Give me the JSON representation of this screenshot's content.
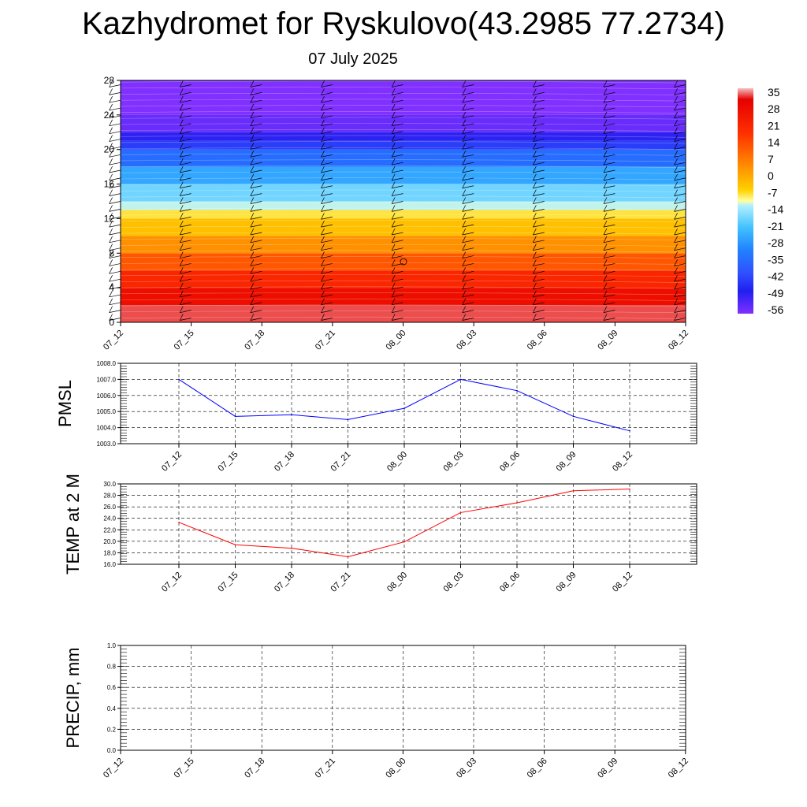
{
  "header": {
    "title": "Kazhydromet for Ryskulovo(43.2985 77.2734)",
    "date": "07 July 2025"
  },
  "chart_data": [
    {
      "id": "cross_section",
      "type": "heatmap",
      "x_ticks": [
        "07_12",
        "07_15",
        "07_18",
        "07_21",
        "08_00",
        "08_03",
        "08_06",
        "08_09",
        "08_12"
      ],
      "y_ticks": [
        "0",
        "4",
        "8",
        "12",
        "16",
        "20",
        "24",
        "28"
      ],
      "ylim": [
        0,
        28
      ],
      "y_band_levels": [
        0,
        2,
        4,
        6,
        8,
        10,
        12,
        13,
        14,
        16,
        18,
        20,
        21,
        22,
        24,
        28
      ],
      "y_band_values": [
        32,
        27,
        22,
        16,
        10,
        4,
        -2,
        -12,
        -18,
        -26,
        -36,
        -46,
        -53,
        -58,
        -60
      ],
      "colorbar_labels": [
        "35",
        "28",
        "21",
        "14",
        "7",
        "0",
        "-7",
        "-14",
        "-21",
        "-28",
        "-35",
        "-42",
        "-49",
        "-56"
      ],
      "colors": [
        "#f4b8b8",
        "#e80000",
        "#ff4000",
        "#ff8000",
        "#ffb000",
        "#ffe000",
        "#ffffa0",
        "#a0e8ff",
        "#40c0ff",
        "#1890ff",
        "#3060ff",
        "#2020ff",
        "#4030ff",
        "#8030ff"
      ]
    },
    {
      "id": "pmsl",
      "type": "line",
      "ylabel": "PMSL",
      "x": [
        "07_12",
        "07_15",
        "07_18",
        "07_21",
        "08_00",
        "08_03",
        "08_06",
        "08_09",
        "08_12"
      ],
      "y_ticks": [
        "1003.0",
        "1004.0",
        "1005.0",
        "1006.0",
        "1007.0",
        "1008.0"
      ],
      "ylim": [
        1003,
        1008
      ],
      "values": [
        1007.0,
        1004.7,
        1004.8,
        1004.5,
        1005.2,
        1007.0,
        1006.3,
        1004.7,
        1003.8
      ],
      "color": "#0000ff",
      "grid": true
    },
    {
      "id": "temp",
      "type": "line",
      "ylabel": "TEMP at 2 M",
      "x": [
        "07_12",
        "07_15",
        "07_18",
        "07_21",
        "08_00",
        "08_03",
        "08_06",
        "08_09",
        "08_12"
      ],
      "y_ticks": [
        "16.0",
        "18.0",
        "20.0",
        "22.0",
        "24.0",
        "26.0",
        "28.0",
        "30.0"
      ],
      "ylim": [
        16,
        30
      ],
      "values": [
        23.3,
        19.4,
        18.8,
        17.3,
        19.9,
        25.0,
        26.7,
        28.8,
        29.1
      ],
      "color": "#ff0000",
      "grid": true
    },
    {
      "id": "precip",
      "type": "line",
      "ylabel": "PRECIP, mm",
      "x_ticks": [
        "07_12",
        "07_15",
        "07_18",
        "07_21",
        "08_00",
        "08_03",
        "08_06",
        "08_09",
        "08_12"
      ],
      "y_ticks": [
        "0.0",
        "0.2",
        "0.4",
        "0.6",
        "0.8",
        "1.0"
      ],
      "ylim": [
        0,
        1
      ],
      "values": [
        0,
        0,
        0,
        0,
        0,
        0,
        0,
        0,
        0
      ],
      "color": "#008000",
      "grid": true
    }
  ]
}
